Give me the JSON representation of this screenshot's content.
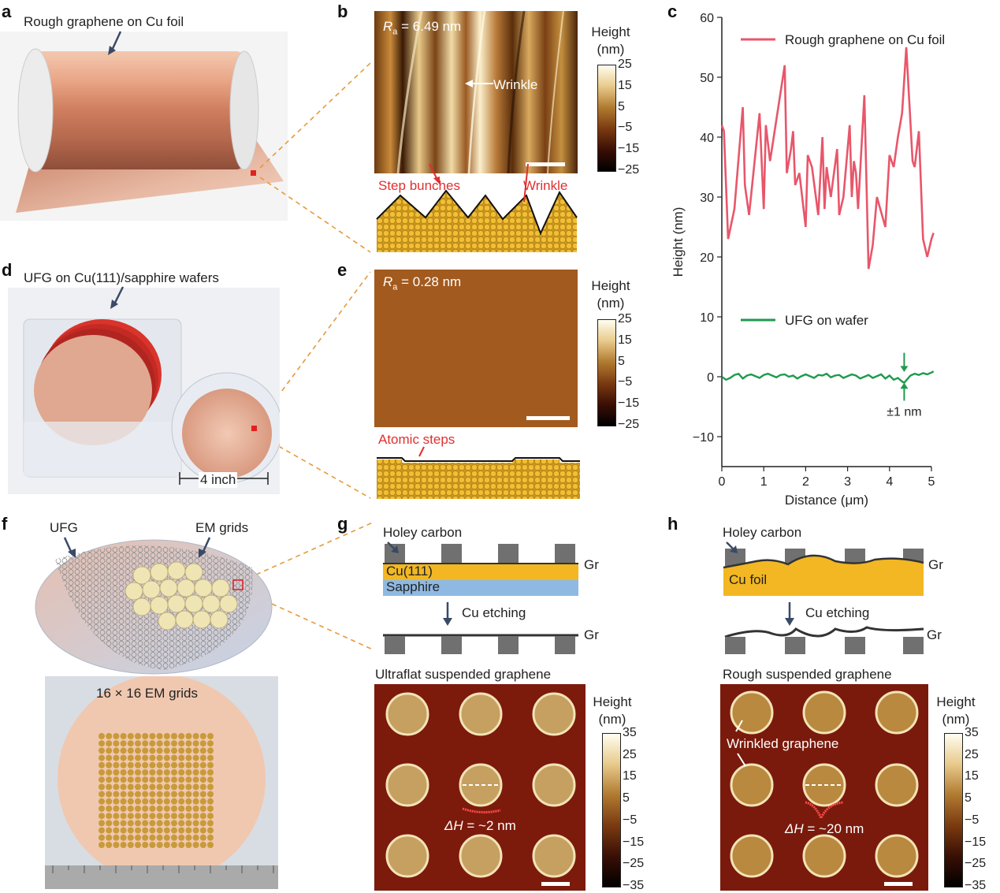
{
  "panels": {
    "a": {
      "letter": "a",
      "caption": "Rough graphene on Cu foil"
    },
    "b": {
      "letter": "b",
      "ra_label": "R",
      "ra_sub": "a",
      "ra_value": " = 6.49 nm",
      "wrinkle_label": "Wrinkle",
      "step_bunches": "Step bunches",
      "wrinkle2": "Wrinkle"
    },
    "c": {
      "letter": "c"
    },
    "d": {
      "letter": "d",
      "caption": "UFG on Cu(111)/sapphire wafers",
      "scale": "4 inch"
    },
    "e": {
      "letter": "e",
      "ra_label": "R",
      "ra_sub": "a",
      "ra_value": " = 0.28 nm",
      "atomic_steps": "Atomic steps"
    },
    "f": {
      "letter": "f",
      "ufg": "UFG",
      "em_grids": "EM grids",
      "grid_caption": "16 × 16 EM grids"
    },
    "g": {
      "letter": "g",
      "holey_carbon": "Holey carbon",
      "cu111": "Cu(111)",
      "sapphire": "Sapphire",
      "gr": "Gr",
      "cu_etching": "Cu etching",
      "gr2": "Gr",
      "title": "Ultraflat suspended graphene",
      "dh_label": "ΔH",
      "dh_value": " = ~2 nm"
    },
    "h": {
      "letter": "h",
      "holey_carbon": "Holey carbon",
      "cu_foil": "Cu foil",
      "gr": "Gr",
      "cu_etching": "Cu etching",
      "gr2": "Gr",
      "title": "Rough suspended graphene",
      "wrinkled": "Wrinkled graphene",
      "dh_label": "ΔH",
      "dh_value": " = ~20 nm"
    }
  },
  "colorbars": {
    "small": {
      "title_line1": "Height",
      "title_line2": "(nm)",
      "ticks": [
        "25",
        "15",
        "5",
        "−5",
        "−15",
        "−25"
      ]
    },
    "large": {
      "title_line1": "Height",
      "title_line2": "(nm)",
      "ticks": [
        "35",
        "25",
        "15",
        "5",
        "−5",
        "−15",
        "−25",
        "−35"
      ]
    }
  },
  "colors": {
    "rough": "#e8566a",
    "ufg": "#1f9a4f",
    "accent_red": "#e0302f",
    "copper": "#d99a78",
    "gold": "#f2b722",
    "sapphire": "#8fb9e2",
    "pillar": "#707070"
  },
  "chart_data": {
    "type": "line",
    "xlabel": "Distance (μm)",
    "ylabel": "Height (nm)",
    "xlim": [
      0,
      5
    ],
    "ylim": [
      -15,
      60
    ],
    "xticks": [
      "0",
      "1",
      "2",
      "3",
      "4",
      "5"
    ],
    "yticks": [
      "−10",
      "0",
      "10",
      "20",
      "30",
      "40",
      "50",
      "60"
    ],
    "legend_position": "top-right",
    "annotation": "±1 nm",
    "series": [
      {
        "name": "Rough graphene on Cu foil",
        "color": "#e8566a",
        "x": [
          0,
          0.05,
          0.15,
          0.3,
          0.5,
          0.55,
          0.65,
          0.9,
          1.0,
          1.05,
          1.15,
          1.5,
          1.55,
          1.6,
          1.65,
          1.7,
          1.75,
          1.85,
          2.0,
          2.05,
          2.15,
          2.3,
          2.4,
          2.45,
          2.5,
          2.6,
          2.75,
          2.8,
          2.9,
          3.0,
          3.05,
          3.1,
          3.15,
          3.2,
          3.25,
          3.4,
          3.5,
          3.6,
          3.7,
          3.9,
          4.0,
          4.1,
          4.2,
          4.3,
          4.4,
          4.55,
          4.6,
          4.7,
          4.8,
          4.9,
          5.0,
          5.05
        ],
        "y": [
          42,
          41,
          23,
          28,
          45,
          32,
          27,
          44,
          28,
          42,
          36,
          52,
          34,
          36,
          38,
          41,
          32,
          34,
          25,
          37,
          35,
          27,
          40,
          28,
          35,
          30,
          38,
          27,
          30,
          38,
          42,
          30,
          36,
          34,
          28,
          47,
          18,
          22,
          30,
          25,
          37,
          35,
          40,
          44,
          55,
          36,
          35,
          41,
          23,
          20,
          23,
          24
        ]
      },
      {
        "name": "UFG on wafer",
        "color": "#1f9a4f",
        "x": [
          0,
          0.1,
          0.2,
          0.3,
          0.4,
          0.5,
          0.6,
          0.7,
          0.8,
          0.9,
          1.0,
          1.1,
          1.2,
          1.3,
          1.4,
          1.5,
          1.6,
          1.7,
          1.8,
          1.9,
          2.0,
          2.1,
          2.2,
          2.3,
          2.4,
          2.5,
          2.6,
          2.7,
          2.8,
          2.9,
          3.0,
          3.1,
          3.2,
          3.3,
          3.4,
          3.5,
          3.6,
          3.7,
          3.8,
          3.9,
          4.0,
          4.1,
          4.2,
          4.3,
          4.35,
          4.4,
          4.5,
          4.6,
          4.7,
          4.8,
          4.9,
          5.0,
          5.05
        ],
        "y": [
          0,
          -0.5,
          -0.2,
          0.3,
          0.5,
          -0.3,
          0.2,
          0.4,
          0.1,
          -0.2,
          0.3,
          0.5,
          0.2,
          -0.1,
          0.3,
          0.4,
          0.0,
          0.2,
          -0.3,
          0.1,
          0.4,
          0.1,
          -0.2,
          0.3,
          0.2,
          0.5,
          -0.1,
          0.2,
          0.3,
          -0.2,
          0.1,
          0.4,
          0.2,
          -0.3,
          0.0,
          0.3,
          -0.2,
          0.1,
          0.4,
          -0.3,
          0.2,
          -0.5,
          -0.2,
          -0.8,
          -1.0,
          -0.6,
          0.2,
          0.5,
          0.3,
          0.6,
          0.4,
          0.7,
          0.9
        ]
      }
    ]
  }
}
